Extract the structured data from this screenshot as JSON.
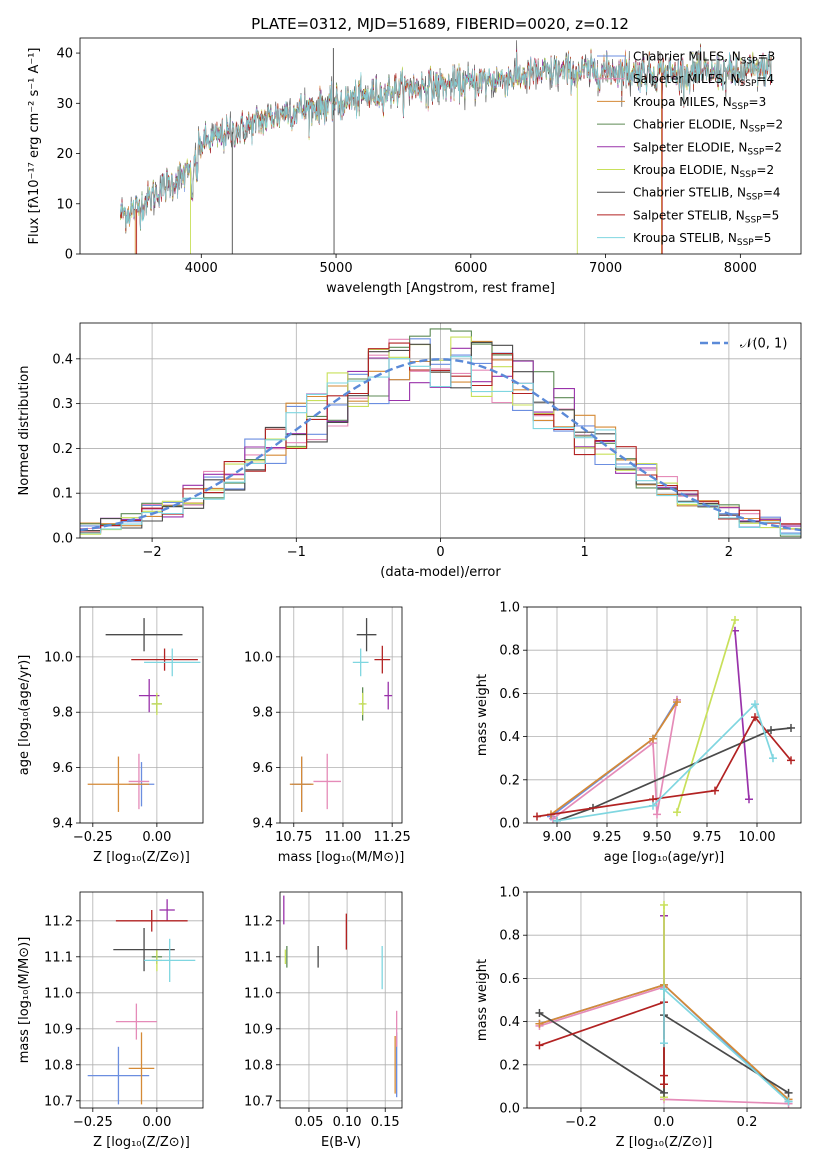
{
  "figure_title": "PLATE=0312, MJD=51689, FIBERID=0020, z=0.12",
  "models": [
    {
      "name": "Chabrier MILES",
      "nssp": "3",
      "color": "#6b8ee0"
    },
    {
      "name": "Salpeter MILES",
      "nssp": "4",
      "color": "#e58bb8"
    },
    {
      "name": "Kroupa MILES",
      "nssp": "3",
      "color": "#d58a36"
    },
    {
      "name": "Chabrier ELODIE",
      "nssp": "2",
      "color": "#5d8a55"
    },
    {
      "name": "Salpeter ELODIE",
      "nssp": "2",
      "color": "#9932aa"
    },
    {
      "name": "Kroupa ELODIE",
      "nssp": "2",
      "color": "#c8e05a"
    },
    {
      "name": "Chabrier STELIB",
      "nssp": "4",
      "color": "#4a4a4a"
    },
    {
      "name": "Salpeter STELIB",
      "nssp": "5",
      "color": "#b22222"
    },
    {
      "name": "Kroupa STELIB",
      "nssp": "5",
      "color": "#7fd6e0"
    }
  ],
  "chart_data": [
    {
      "id": "spectrum",
      "type": "line",
      "title": "PLATE=0312, MJD=51689, FIBERID=0020, z=0.12",
      "xlabel": "wavelength [Angstrom, rest frame]",
      "ylabel": "Flux [fλ10⁻¹⁷ erg cm⁻² s⁻¹ A⁻¹]",
      "xlim": [
        3100,
        8450
      ],
      "ylim": [
        0,
        43
      ],
      "xticks": [
        4000,
        5000,
        6000,
        7000,
        8000
      ],
      "yticks": [
        0,
        10,
        20,
        30,
        40
      ],
      "continuum": {
        "x": [
          3400,
          3500,
          3700,
          3900,
          4000,
          4300,
          4600,
          5000,
          5500,
          6000,
          6500,
          7000,
          7500,
          8000,
          8200
        ],
        "y": [
          8,
          8.5,
          13,
          16,
          22,
          25,
          28,
          30,
          33,
          34,
          36,
          36.5,
          36,
          36,
          37
        ]
      }
    },
    {
      "id": "residuals",
      "type": "line",
      "xlabel": "(data-model)/error",
      "ylabel": "Normed distribution",
      "xlim": [
        -2.5,
        2.5
      ],
      "ylim": [
        0,
        0.48
      ],
      "xticks": [
        -2,
        -1,
        0,
        1,
        2
      ],
      "yticks": [
        0,
        0.1,
        0.2,
        0.3,
        0.4
      ],
      "legend": [
        "𝒩(0, 1)"
      ],
      "reference": {
        "name": "𝒩(0, 1)",
        "mean": 0,
        "sigma": 1
      }
    },
    {
      "id": "age_vs_Z",
      "type": "scatter",
      "xlabel": "Z [log₁₀(Z/Z⊙)]",
      "ylabel": "age  [log₁₀(age/yr)]",
      "xlim": [
        -0.3,
        0.18
      ],
      "ylim": [
        9.4,
        10.18
      ],
      "xticks": [
        -0.25,
        0.0
      ],
      "yticks": [
        9.4,
        9.6,
        9.8,
        10.0
      ],
      "points": [
        {
          "x": -0.06,
          "y": 9.54,
          "xerr": 0.05,
          "yerr": 0.08,
          "model": 0
        },
        {
          "x": -0.07,
          "y": 9.55,
          "xerr": 0.04,
          "yerr": 0.1,
          "model": 1
        },
        {
          "x": -0.15,
          "y": 9.54,
          "xerr": 0.12,
          "yerr": 0.1,
          "model": 2
        },
        {
          "x": -0.0,
          "y": 9.83,
          "xerr": 0.02,
          "yerr": 0.03,
          "model": 3
        },
        {
          "x": -0.03,
          "y": 9.86,
          "xerr": 0.04,
          "yerr": 0.06,
          "model": 4
        },
        {
          "x": -0.0,
          "y": 9.83,
          "xerr": 0.02,
          "yerr": 0.04,
          "model": 5
        },
        {
          "x": -0.05,
          "y": 10.08,
          "xerr": 0.15,
          "yerr": 0.06,
          "model": 6
        },
        {
          "x": 0.03,
          "y": 9.99,
          "xerr": 0.13,
          "yerr": 0.04,
          "model": 7
        },
        {
          "x": 0.06,
          "y": 9.98,
          "xerr": 0.11,
          "yerr": 0.05,
          "model": 8
        }
      ]
    },
    {
      "id": "age_vs_mass",
      "type": "scatter",
      "xlabel": "mass [log₁₀(M/M⊙)]",
      "ylabel": "",
      "xlim": [
        10.68,
        11.3
      ],
      "ylim": [
        9.4,
        10.18
      ],
      "xticks": [
        10.75,
        11.0,
        11.25
      ],
      "yticks": [
        9.4,
        9.6,
        9.8,
        10.0
      ],
      "points": [
        {
          "x": 10.79,
          "y": 9.54,
          "xerr": 0.05,
          "yerr": 0.1,
          "model": 0
        },
        {
          "x": 10.92,
          "y": 9.55,
          "xerr": 0.07,
          "yerr": 0.1,
          "model": 1
        },
        {
          "x": 10.79,
          "y": 9.54,
          "xerr": 0.06,
          "yerr": 0.1,
          "model": 2
        },
        {
          "x": 11.1,
          "y": 9.83,
          "xerr": 0.01,
          "yerr": 0.06,
          "model": 3
        },
        {
          "x": 11.23,
          "y": 9.86,
          "xerr": 0.02,
          "yerr": 0.05,
          "model": 4
        },
        {
          "x": 11.1,
          "y": 9.83,
          "xerr": 0.02,
          "yerr": 0.04,
          "model": 5
        },
        {
          "x": 11.12,
          "y": 10.08,
          "xerr": 0.05,
          "yerr": 0.06,
          "model": 6
        },
        {
          "x": 11.2,
          "y": 9.99,
          "xerr": 0.04,
          "yerr": 0.05,
          "model": 7
        },
        {
          "x": 11.09,
          "y": 9.98,
          "xerr": 0.04,
          "yerr": 0.05,
          "model": 8
        }
      ]
    },
    {
      "id": "weight_vs_age",
      "type": "line",
      "xlabel": "age  [log₁₀(age/yr)]",
      "ylabel": "mass weight",
      "xlim": [
        8.85,
        10.22
      ],
      "ylim": [
        0,
        1.0
      ],
      "xticks": [
        9.0,
        9.25,
        9.5,
        9.75,
        10.0
      ],
      "yticks": [
        0.0,
        0.2,
        0.4,
        0.6,
        0.8,
        1.0
      ],
      "series": [
        {
          "model": 0,
          "x": [
            8.97,
            9.48,
            9.6
          ],
          "y": [
            0.03,
            0.39,
            0.57
          ]
        },
        {
          "model": 1,
          "x": [
            8.98,
            9.48,
            9.5,
            9.6
          ],
          "y": [
            0.02,
            0.37,
            0.04,
            0.57
          ]
        },
        {
          "model": 2,
          "x": [
            8.97,
            9.48,
            9.6
          ],
          "y": [
            0.04,
            0.39,
            0.56
          ]
        },
        {
          "model": 4,
          "x": [
            9.89,
            9.96
          ],
          "y": [
            0.89,
            0.11
          ]
        },
        {
          "model": 5,
          "x": [
            9.6,
            9.89
          ],
          "y": [
            0.05,
            0.94
          ]
        },
        {
          "model": 6,
          "x": [
            9.0,
            9.18,
            10.07,
            10.17
          ],
          "y": [
            0.01,
            0.07,
            0.43,
            0.44
          ]
        },
        {
          "model": 7,
          "x": [
            8.9,
            9.48,
            9.79,
            9.99,
            10.17
          ],
          "y": [
            0.03,
            0.11,
            0.15,
            0.49,
            0.29
          ]
        },
        {
          "model": 8,
          "x": [
            9.0,
            9.48,
            9.99,
            10.08
          ],
          "y": [
            0.01,
            0.08,
            0.55,
            0.3
          ]
        }
      ]
    },
    {
      "id": "mass_vs_Z",
      "type": "scatter",
      "xlabel": "Z [log₁₀(Z/Z⊙)]",
      "ylabel": "mass [log₁₀(M/M⊙)]",
      "xlim": [
        -0.3,
        0.18
      ],
      "ylim": [
        10.68,
        11.28
      ],
      "xticks": [
        -0.25,
        0.0
      ],
      "yticks": [
        10.7,
        10.8,
        10.9,
        11.0,
        11.1,
        11.2
      ],
      "points": [
        {
          "x": -0.15,
          "y": 10.77,
          "xerr": 0.12,
          "yerr": 0.08,
          "model": 0
        },
        {
          "x": -0.08,
          "y": 10.92,
          "xerr": 0.08,
          "yerr": 0.05,
          "model": 1
        },
        {
          "x": -0.06,
          "y": 10.79,
          "xerr": 0.05,
          "yerr": 0.1,
          "model": 2
        },
        {
          "x": -0.0,
          "y": 11.1,
          "xerr": 0.02,
          "yerr": 0.02,
          "model": 3
        },
        {
          "x": 0.04,
          "y": 11.23,
          "xerr": 0.03,
          "yerr": 0.03,
          "model": 4
        },
        {
          "x": -0.0,
          "y": 11.09,
          "xerr": 0.02,
          "yerr": 0.03,
          "model": 5
        },
        {
          "x": -0.05,
          "y": 11.12,
          "xerr": 0.12,
          "yerr": 0.06,
          "model": 6
        },
        {
          "x": -0.02,
          "y": 11.2,
          "xerr": 0.14,
          "yerr": 0.03,
          "model": 7
        },
        {
          "x": 0.05,
          "y": 11.09,
          "xerr": 0.1,
          "yerr": 0.06,
          "model": 8
        }
      ]
    },
    {
      "id": "mass_vs_ebv",
      "type": "scatter",
      "xlabel": "E(B-V)",
      "ylabel": "",
      "xlim": [
        0.012,
        0.172
      ],
      "ylim": [
        10.68,
        11.28
      ],
      "xticks": [
        0.05,
        0.1,
        0.15
      ],
      "yticks": [
        10.7,
        10.8,
        10.9,
        11.0,
        11.1,
        11.2
      ],
      "points": [
        {
          "x": 0.165,
          "y": 10.8,
          "yerr": 0.09,
          "model": 0
        },
        {
          "x": 0.165,
          "y": 10.9,
          "yerr": 0.05,
          "model": 1
        },
        {
          "x": 0.163,
          "y": 10.8,
          "yerr": 0.08,
          "model": 2
        },
        {
          "x": 0.021,
          "y": 11.1,
          "yerr": 0.03,
          "model": 3
        },
        {
          "x": 0.017,
          "y": 11.23,
          "yerr": 0.04,
          "model": 4
        },
        {
          "x": 0.019,
          "y": 11.1,
          "yerr": 0.02,
          "model": 5
        },
        {
          "x": 0.062,
          "y": 11.1,
          "yerr": 0.03,
          "model": 6
        },
        {
          "x": 0.099,
          "y": 11.17,
          "yerr": 0.05,
          "model": 7
        },
        {
          "x": 0.146,
          "y": 11.07,
          "yerr": 0.06,
          "model": 8
        }
      ]
    },
    {
      "id": "weight_vs_Z",
      "type": "line",
      "xlabel": "Z [log₁₀(Z/Z⊙)]",
      "ylabel": "mass weight",
      "xlim": [
        -0.33,
        0.33
      ],
      "ylim": [
        0,
        1.0
      ],
      "xticks": [
        -0.2,
        0.0,
        0.2
      ],
      "yticks": [
        0.0,
        0.2,
        0.4,
        0.6,
        0.8,
        1.0
      ],
      "series": [
        {
          "model": 0,
          "x": [
            -0.3,
            0.0,
            0.3
          ],
          "y": [
            0.39,
            0.57,
            0.03
          ]
        },
        {
          "model": 1,
          "x": [
            -0.3,
            0.0,
            0.0,
            0.3
          ],
          "y": [
            0.38,
            0.56,
            0.04,
            0.02
          ]
        },
        {
          "model": 2,
          "x": [
            -0.3,
            0.0,
            0.3
          ],
          "y": [
            0.39,
            0.57,
            0.04
          ]
        },
        {
          "model": 4,
          "x": [
            0.0,
            0.0
          ],
          "y": [
            0.89,
            0.11
          ]
        },
        {
          "model": 5,
          "x": [
            0.0,
            0.0
          ],
          "y": [
            0.05,
            0.94
          ]
        },
        {
          "model": 6,
          "x": [
            -0.3,
            0.0,
            0.0,
            0.3
          ],
          "y": [
            0.44,
            0.07,
            0.43,
            0.07
          ]
        },
        {
          "model": 7,
          "x": [
            -0.3,
            0.0,
            0.0,
            0.0
          ],
          "y": [
            0.29,
            0.49,
            0.15,
            0.11
          ]
        },
        {
          "model": 8,
          "x": [
            0.0,
            0.0,
            0.3
          ],
          "y": [
            0.3,
            0.55,
            0.03
          ]
        }
      ]
    }
  ]
}
